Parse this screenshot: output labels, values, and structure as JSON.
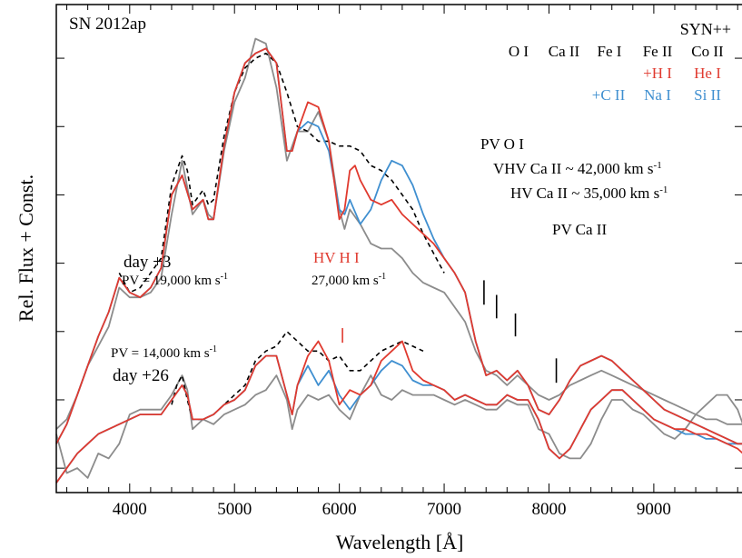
{
  "chart_data": {
    "type": "line",
    "title": "SN 2012ap",
    "xlabel": "Wavelength [Å]",
    "ylabel": "Rel. Flux + Const.",
    "xlim": [
      3300,
      9850
    ],
    "ylim": [
      0,
      1
    ],
    "x_ticks": [
      4000,
      5000,
      6000,
      7000,
      8000,
      9000
    ],
    "x_tick_labels": [
      "4000",
      "5000",
      "6000",
      "7000",
      "8000",
      "9000"
    ],
    "y_ticks": [
      0.05,
      0.19,
      0.33,
      0.47,
      0.61,
      0.75,
      0.89
    ],
    "grid": false,
    "legend": {
      "title": "SYN++",
      "row1": [
        "O I",
        "Ca II",
        "Fe I",
        "Fe II",
        "Co II"
      ],
      "row2": [
        "+H I",
        "He I"
      ],
      "row3": [
        "+C II",
        "Na I",
        "Si II"
      ]
    },
    "annotations": {
      "day3": "day +3",
      "day3_pv_prefix": "PV = 19,000 km s",
      "day26": "day +26",
      "day26_pv_prefix": "PV = 14,000 km s",
      "hv_hi": "HV H I",
      "hv_hi_vel_prefix": "27,000 km s",
      "pv_oi": "PV O I",
      "vhv_ca": "VHV Ca II  ~  42,000 km s",
      "hv_ca": "HV Ca II  ~  35,000 km s",
      "pv_ca": "PV Ca II",
      "unit_exp": "-1"
    },
    "markers": [
      {
        "x": 6030,
        "y": [
          0.337,
          0.307
        ],
        "color": "#e03a2f"
      },
      {
        "x": 7380,
        "y": [
          0.435,
          0.385
        ],
        "color": "#000000"
      },
      {
        "x": 7500,
        "y": [
          0.405,
          0.357
        ],
        "color": "#000000"
      },
      {
        "x": 7680,
        "y": [
          0.367,
          0.32
        ],
        "color": "#000000"
      },
      {
        "x": 8070,
        "y": [
          0.275,
          0.225
        ],
        "color": "#000000"
      }
    ],
    "colors": {
      "observed": "#8c8c8c",
      "fit_red": "#e03a2f",
      "fit_blue": "#3f8fd0",
      "dashed": "#000000"
    },
    "series": [
      {
        "id": "day3-observed",
        "color": "#8c8c8c",
        "style": "solid",
        "x": [
          3300,
          3400,
          3500,
          3600,
          3700,
          3800,
          3900,
          4000,
          4100,
          4200,
          4300,
          4400,
          4500,
          4600,
          4700,
          4750,
          4800,
          4900,
          5000,
          5100,
          5200,
          5300,
          5400,
          5500,
          5550,
          5600,
          5700,
          5800,
          5900,
          6000,
          6050,
          6100,
          6200,
          6300,
          6400,
          6500,
          6600,
          6700,
          6800,
          6900,
          7000,
          7100,
          7200,
          7300,
          7400,
          7500,
          7600,
          7700,
          7800,
          7900,
          8000,
          8100,
          8200,
          8300,
          8400,
          8500,
          8600,
          8700,
          8800,
          8900,
          9000,
          9100,
          9200,
          9300,
          9400,
          9500,
          9600,
          9700,
          9800,
          9850
        ],
        "y": [
          0.13,
          0.15,
          0.2,
          0.26,
          0.3,
          0.34,
          0.42,
          0.4,
          0.4,
          0.41,
          0.44,
          0.57,
          0.68,
          0.57,
          0.6,
          0.57,
          0.56,
          0.7,
          0.8,
          0.85,
          0.93,
          0.92,
          0.83,
          0.68,
          0.71,
          0.74,
          0.74,
          0.78,
          0.72,
          0.58,
          0.54,
          0.58,
          0.55,
          0.51,
          0.5,
          0.5,
          0.48,
          0.45,
          0.43,
          0.42,
          0.41,
          0.38,
          0.35,
          0.29,
          0.25,
          0.24,
          0.22,
          0.24,
          0.22,
          0.2,
          0.19,
          0.2,
          0.22,
          0.23,
          0.24,
          0.25,
          0.24,
          0.23,
          0.22,
          0.21,
          0.2,
          0.19,
          0.18,
          0.17,
          0.16,
          0.15,
          0.15,
          0.14,
          0.14,
          0.14
        ]
      },
      {
        "id": "day3-model-dashed",
        "color": "#000000",
        "style": "dashed",
        "x": [
          3900,
          4000,
          4100,
          4200,
          4300,
          4400,
          4500,
          4550,
          4600,
          4700,
          4750,
          4800,
          4900,
          5000,
          5100,
          5200,
          5300,
          5400,
          5500,
          5600,
          5700,
          5800,
          5900,
          6000,
          6100,
          6200,
          6300,
          6400,
          6500,
          6600,
          6700,
          6800,
          6900,
          7000
        ],
        "y": [
          0.45,
          0.41,
          0.42,
          0.45,
          0.48,
          0.63,
          0.69,
          0.66,
          0.59,
          0.62,
          0.59,
          0.6,
          0.73,
          0.82,
          0.87,
          0.89,
          0.9,
          0.88,
          0.82,
          0.75,
          0.74,
          0.72,
          0.72,
          0.71,
          0.71,
          0.7,
          0.67,
          0.66,
          0.64,
          0.61,
          0.58,
          0.53,
          0.49,
          0.45
        ]
      },
      {
        "id": "day3-model-blue",
        "color": "#3f8fd0",
        "style": "solid",
        "x": [
          3300,
          3400,
          3500,
          3600,
          3700,
          3800,
          3900,
          4000,
          4100,
          4200,
          4300,
          4400,
          4500,
          4600,
          4700,
          4750,
          4800,
          4900,
          5000,
          5100,
          5200,
          5300,
          5400,
          5500,
          5550,
          5600,
          5700,
          5800,
          5900,
          6000,
          6050,
          6100,
          6200,
          6300,
          6400,
          6500,
          6600,
          6700,
          6800,
          6900,
          7000,
          7100,
          7200,
          7300,
          7400,
          7500,
          7600,
          7700,
          7800,
          7900,
          8000,
          8100,
          8200,
          8300,
          8400,
          8500,
          8600,
          8700,
          8800,
          8900,
          9000,
          9100,
          9200,
          9300,
          9400,
          9500,
          9600,
          9700,
          9800,
          9850
        ],
        "y": [
          0.1,
          0.14,
          0.2,
          0.26,
          0.32,
          0.37,
          0.44,
          0.41,
          0.4,
          0.42,
          0.46,
          0.61,
          0.65,
          0.58,
          0.6,
          0.56,
          0.56,
          0.71,
          0.82,
          0.88,
          0.9,
          0.91,
          0.88,
          0.7,
          0.7,
          0.74,
          0.76,
          0.75,
          0.7,
          0.58,
          0.57,
          0.6,
          0.55,
          0.58,
          0.64,
          0.68,
          0.67,
          0.63,
          0.57,
          0.52,
          0.48,
          0.45,
          0.41,
          0.31,
          0.24,
          0.25,
          0.23,
          0.25,
          0.22,
          0.17,
          0.16,
          0.19,
          0.23,
          0.26,
          0.27,
          0.28,
          0.27,
          0.25,
          0.23,
          0.21,
          0.19,
          0.17,
          0.16,
          0.15,
          0.14,
          0.13,
          0.12,
          0.11,
          0.1,
          0.1
        ]
      },
      {
        "id": "day3-model-red",
        "color": "#e03a2f",
        "style": "solid",
        "x": [
          3300,
          3400,
          3500,
          3600,
          3700,
          3800,
          3900,
          4000,
          4100,
          4200,
          4300,
          4400,
          4500,
          4600,
          4700,
          4750,
          4800,
          4900,
          5000,
          5100,
          5200,
          5300,
          5400,
          5500,
          5550,
          5600,
          5700,
          5800,
          5900,
          6000,
          6050,
          6100,
          6150,
          6200,
          6300,
          6400,
          6500,
          6600,
          6700,
          6800,
          6900,
          7000,
          7100,
          7200,
          7300,
          7400,
          7500,
          7600,
          7700,
          7800,
          7900,
          8000,
          8100,
          8200,
          8300,
          8400,
          8500,
          8600,
          8700,
          8800,
          8900,
          9000,
          9100,
          9200,
          9300,
          9400,
          9500,
          9600,
          9700,
          9800,
          9850
        ],
        "y": [
          0.1,
          0.14,
          0.2,
          0.26,
          0.32,
          0.37,
          0.44,
          0.41,
          0.4,
          0.42,
          0.46,
          0.61,
          0.65,
          0.58,
          0.6,
          0.56,
          0.56,
          0.71,
          0.82,
          0.88,
          0.9,
          0.91,
          0.88,
          0.7,
          0.7,
          0.74,
          0.8,
          0.79,
          0.72,
          0.56,
          0.58,
          0.66,
          0.67,
          0.64,
          0.6,
          0.59,
          0.6,
          0.57,
          0.55,
          0.53,
          0.51,
          0.48,
          0.45,
          0.41,
          0.31,
          0.24,
          0.25,
          0.23,
          0.25,
          0.22,
          0.17,
          0.16,
          0.19,
          0.23,
          0.26,
          0.27,
          0.28,
          0.27,
          0.25,
          0.23,
          0.21,
          0.19,
          0.17,
          0.16,
          0.15,
          0.14,
          0.13,
          0.12,
          0.11,
          0.1,
          0.1
        ]
      },
      {
        "id": "day26-observed",
        "color": "#8c8c8c",
        "style": "solid",
        "x": [
          3300,
          3400,
          3500,
          3600,
          3700,
          3800,
          3900,
          4000,
          4100,
          4200,
          4300,
          4400,
          4500,
          4550,
          4600,
          4700,
          4800,
          4900,
          5000,
          5100,
          5200,
          5300,
          5400,
          5500,
          5550,
          5600,
          5700,
          5800,
          5900,
          6000,
          6100,
          6200,
          6300,
          6400,
          6500,
          6600,
          6700,
          6800,
          6900,
          7000,
          7100,
          7200,
          7300,
          7400,
          7500,
          7600,
          7700,
          7800,
          7900,
          8000,
          8100,
          8200,
          8300,
          8400,
          8500,
          8600,
          8700,
          8800,
          8900,
          9000,
          9100,
          9200,
          9300,
          9400,
          9500,
          9600,
          9700,
          9800,
          9850
        ],
        "y": [
          0.12,
          0.04,
          0.05,
          0.03,
          0.08,
          0.07,
          0.1,
          0.16,
          0.17,
          0.17,
          0.17,
          0.2,
          0.24,
          0.21,
          0.13,
          0.15,
          0.14,
          0.16,
          0.17,
          0.18,
          0.2,
          0.21,
          0.24,
          0.19,
          0.13,
          0.17,
          0.2,
          0.19,
          0.2,
          0.17,
          0.15,
          0.2,
          0.24,
          0.2,
          0.19,
          0.21,
          0.2,
          0.2,
          0.2,
          0.19,
          0.18,
          0.19,
          0.18,
          0.17,
          0.17,
          0.19,
          0.18,
          0.18,
          0.13,
          0.12,
          0.08,
          0.07,
          0.07,
          0.1,
          0.15,
          0.19,
          0.19,
          0.17,
          0.16,
          0.14,
          0.12,
          0.11,
          0.13,
          0.16,
          0.18,
          0.2,
          0.2,
          0.17,
          0.14
        ]
      },
      {
        "id": "day26-model-dashed",
        "color": "#000000",
        "style": "dashed",
        "x": [
          4400,
          4450,
          4500,
          4550,
          4600,
          4700,
          4800,
          4900,
          5000,
          5100,
          5200,
          5300,
          5400,
          5500,
          5600,
          5700,
          5800,
          5900,
          6000,
          6100,
          6200,
          6300,
          6400,
          6500,
          6600,
          6700,
          6800
        ],
        "y": [
          0.18,
          0.22,
          0.24,
          0.19,
          0.15,
          0.15,
          0.16,
          0.18,
          0.2,
          0.22,
          0.27,
          0.29,
          0.3,
          0.33,
          0.31,
          0.29,
          0.29,
          0.27,
          0.28,
          0.25,
          0.25,
          0.27,
          0.29,
          0.3,
          0.31,
          0.3,
          0.29
        ]
      },
      {
        "id": "day26-model-blue",
        "color": "#3f8fd0",
        "style": "solid",
        "x": [
          3300,
          3400,
          3500,
          3600,
          3700,
          3800,
          3900,
          4000,
          4100,
          4200,
          4300,
          4400,
          4500,
          4550,
          4600,
          4700,
          4800,
          4900,
          5000,
          5100,
          5200,
          5300,
          5400,
          5500,
          5550,
          5600,
          5700,
          5800,
          5900,
          6000,
          6100,
          6200,
          6300,
          6400,
          6500,
          6600,
          6700,
          6800,
          6900,
          7000,
          7100,
          7200,
          7300,
          7400,
          7500,
          7600,
          7700,
          7800,
          7900,
          8000,
          8100,
          8200,
          8300,
          8400,
          8500,
          8600,
          8700,
          8800,
          8900,
          9000,
          9100,
          9200,
          9300,
          9400,
          9500,
          9600,
          9700,
          9800,
          9850
        ],
        "y": [
          0.02,
          0.05,
          0.08,
          0.1,
          0.12,
          0.13,
          0.14,
          0.15,
          0.16,
          0.16,
          0.16,
          0.19,
          0.22,
          0.2,
          0.15,
          0.15,
          0.16,
          0.18,
          0.19,
          0.21,
          0.26,
          0.28,
          0.28,
          0.2,
          0.16,
          0.22,
          0.26,
          0.22,
          0.25,
          0.2,
          0.17,
          0.2,
          0.22,
          0.25,
          0.27,
          0.26,
          0.23,
          0.22,
          0.22,
          0.21,
          0.19,
          0.2,
          0.19,
          0.18,
          0.18,
          0.2,
          0.19,
          0.19,
          0.15,
          0.09,
          0.07,
          0.09,
          0.13,
          0.17,
          0.19,
          0.21,
          0.21,
          0.19,
          0.17,
          0.15,
          0.14,
          0.13,
          0.12,
          0.12,
          0.11,
          0.11,
          0.1,
          0.1,
          0.1
        ]
      },
      {
        "id": "day26-model-red",
        "color": "#e03a2f",
        "style": "solid",
        "x": [
          3300,
          3400,
          3500,
          3600,
          3700,
          3800,
          3900,
          4000,
          4100,
          4200,
          4300,
          4400,
          4500,
          4550,
          4600,
          4700,
          4800,
          4900,
          5000,
          5100,
          5200,
          5300,
          5400,
          5500,
          5550,
          5600,
          5700,
          5800,
          5900,
          6000,
          6100,
          6200,
          6300,
          6400,
          6500,
          6600,
          6700,
          6800,
          6900,
          7000,
          7100,
          7200,
          7300,
          7400,
          7500,
          7600,
          7700,
          7800,
          7900,
          8000,
          8100,
          8200,
          8300,
          8400,
          8500,
          8600,
          8700,
          8800,
          8900,
          9000,
          9100,
          9200,
          9300,
          9400,
          9500,
          9600,
          9700,
          9800,
          9850
        ],
        "y": [
          0.02,
          0.05,
          0.08,
          0.1,
          0.12,
          0.13,
          0.14,
          0.15,
          0.16,
          0.16,
          0.16,
          0.19,
          0.22,
          0.2,
          0.15,
          0.15,
          0.16,
          0.18,
          0.19,
          0.21,
          0.26,
          0.28,
          0.28,
          0.2,
          0.16,
          0.22,
          0.28,
          0.31,
          0.27,
          0.18,
          0.21,
          0.2,
          0.22,
          0.27,
          0.29,
          0.31,
          0.25,
          0.23,
          0.22,
          0.21,
          0.19,
          0.2,
          0.19,
          0.18,
          0.18,
          0.2,
          0.19,
          0.19,
          0.15,
          0.09,
          0.07,
          0.09,
          0.13,
          0.17,
          0.19,
          0.21,
          0.21,
          0.19,
          0.17,
          0.15,
          0.14,
          0.13,
          0.13,
          0.12,
          0.12,
          0.11,
          0.1,
          0.09,
          0.08
        ]
      }
    ]
  }
}
